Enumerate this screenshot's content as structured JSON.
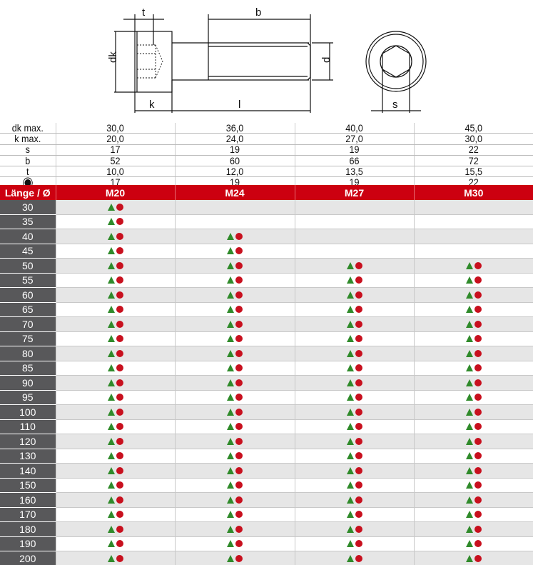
{
  "drawing": {
    "labels": {
      "t": "t",
      "b": "b",
      "dk": "dk",
      "d": "d",
      "k": "k",
      "l": "l",
      "s": "s"
    }
  },
  "specs": {
    "rows": [
      {
        "label": "dk max.",
        "values": [
          "30,0",
          "36,0",
          "40,0",
          "45,0"
        ]
      },
      {
        "label": "k max.",
        "values": [
          "20,0",
          "24,0",
          "27,0",
          "30,0"
        ]
      },
      {
        "label": "s",
        "values": [
          "17",
          "19",
          "19",
          "22"
        ]
      },
      {
        "label": "b",
        "values": [
          "52",
          "60",
          "66",
          "72"
        ]
      },
      {
        "label": "t",
        "values": [
          "10,0",
          "12,0",
          "13,5",
          "15,5"
        ]
      },
      {
        "label": "",
        "icon": "hex-drive-icon",
        "values": [
          "17",
          "19",
          "19",
          "22"
        ]
      }
    ]
  },
  "table": {
    "header_label": "Länge / Ø",
    "sizes": [
      "M20",
      "M24",
      "M27",
      "M30"
    ],
    "marks": {
      "triangle_color": "#2f8a2a",
      "circle_color": "#c8101e"
    },
    "header_color": "#cc0010",
    "rows": [
      {
        "length": "30",
        "avail": [
          true,
          false,
          false,
          false
        ]
      },
      {
        "length": "35",
        "avail": [
          true,
          false,
          false,
          false
        ]
      },
      {
        "length": "40",
        "avail": [
          true,
          true,
          false,
          false
        ]
      },
      {
        "length": "45",
        "avail": [
          true,
          true,
          false,
          false
        ]
      },
      {
        "length": "50",
        "avail": [
          true,
          true,
          true,
          true
        ]
      },
      {
        "length": "55",
        "avail": [
          true,
          true,
          true,
          true
        ]
      },
      {
        "length": "60",
        "avail": [
          true,
          true,
          true,
          true
        ]
      },
      {
        "length": "65",
        "avail": [
          true,
          true,
          true,
          true
        ]
      },
      {
        "length": "70",
        "avail": [
          true,
          true,
          true,
          true
        ]
      },
      {
        "length": "75",
        "avail": [
          true,
          true,
          true,
          true
        ]
      },
      {
        "length": "80",
        "avail": [
          true,
          true,
          true,
          true
        ]
      },
      {
        "length": "85",
        "avail": [
          true,
          true,
          true,
          true
        ]
      },
      {
        "length": "90",
        "avail": [
          true,
          true,
          true,
          true
        ]
      },
      {
        "length": "95",
        "avail": [
          true,
          true,
          true,
          true
        ]
      },
      {
        "length": "100",
        "avail": [
          true,
          true,
          true,
          true
        ]
      },
      {
        "length": "110",
        "avail": [
          true,
          true,
          true,
          true
        ]
      },
      {
        "length": "120",
        "avail": [
          true,
          true,
          true,
          true
        ]
      },
      {
        "length": "130",
        "avail": [
          true,
          true,
          true,
          true
        ]
      },
      {
        "length": "140",
        "avail": [
          true,
          true,
          true,
          true
        ]
      },
      {
        "length": "150",
        "avail": [
          true,
          true,
          true,
          true
        ]
      },
      {
        "length": "160",
        "avail": [
          true,
          true,
          true,
          true
        ]
      },
      {
        "length": "170",
        "avail": [
          true,
          true,
          true,
          true
        ]
      },
      {
        "length": "180",
        "avail": [
          true,
          true,
          true,
          true
        ]
      },
      {
        "length": "190",
        "avail": [
          true,
          true,
          true,
          true
        ]
      },
      {
        "length": "200",
        "avail": [
          true,
          true,
          true,
          true
        ]
      }
    ]
  }
}
